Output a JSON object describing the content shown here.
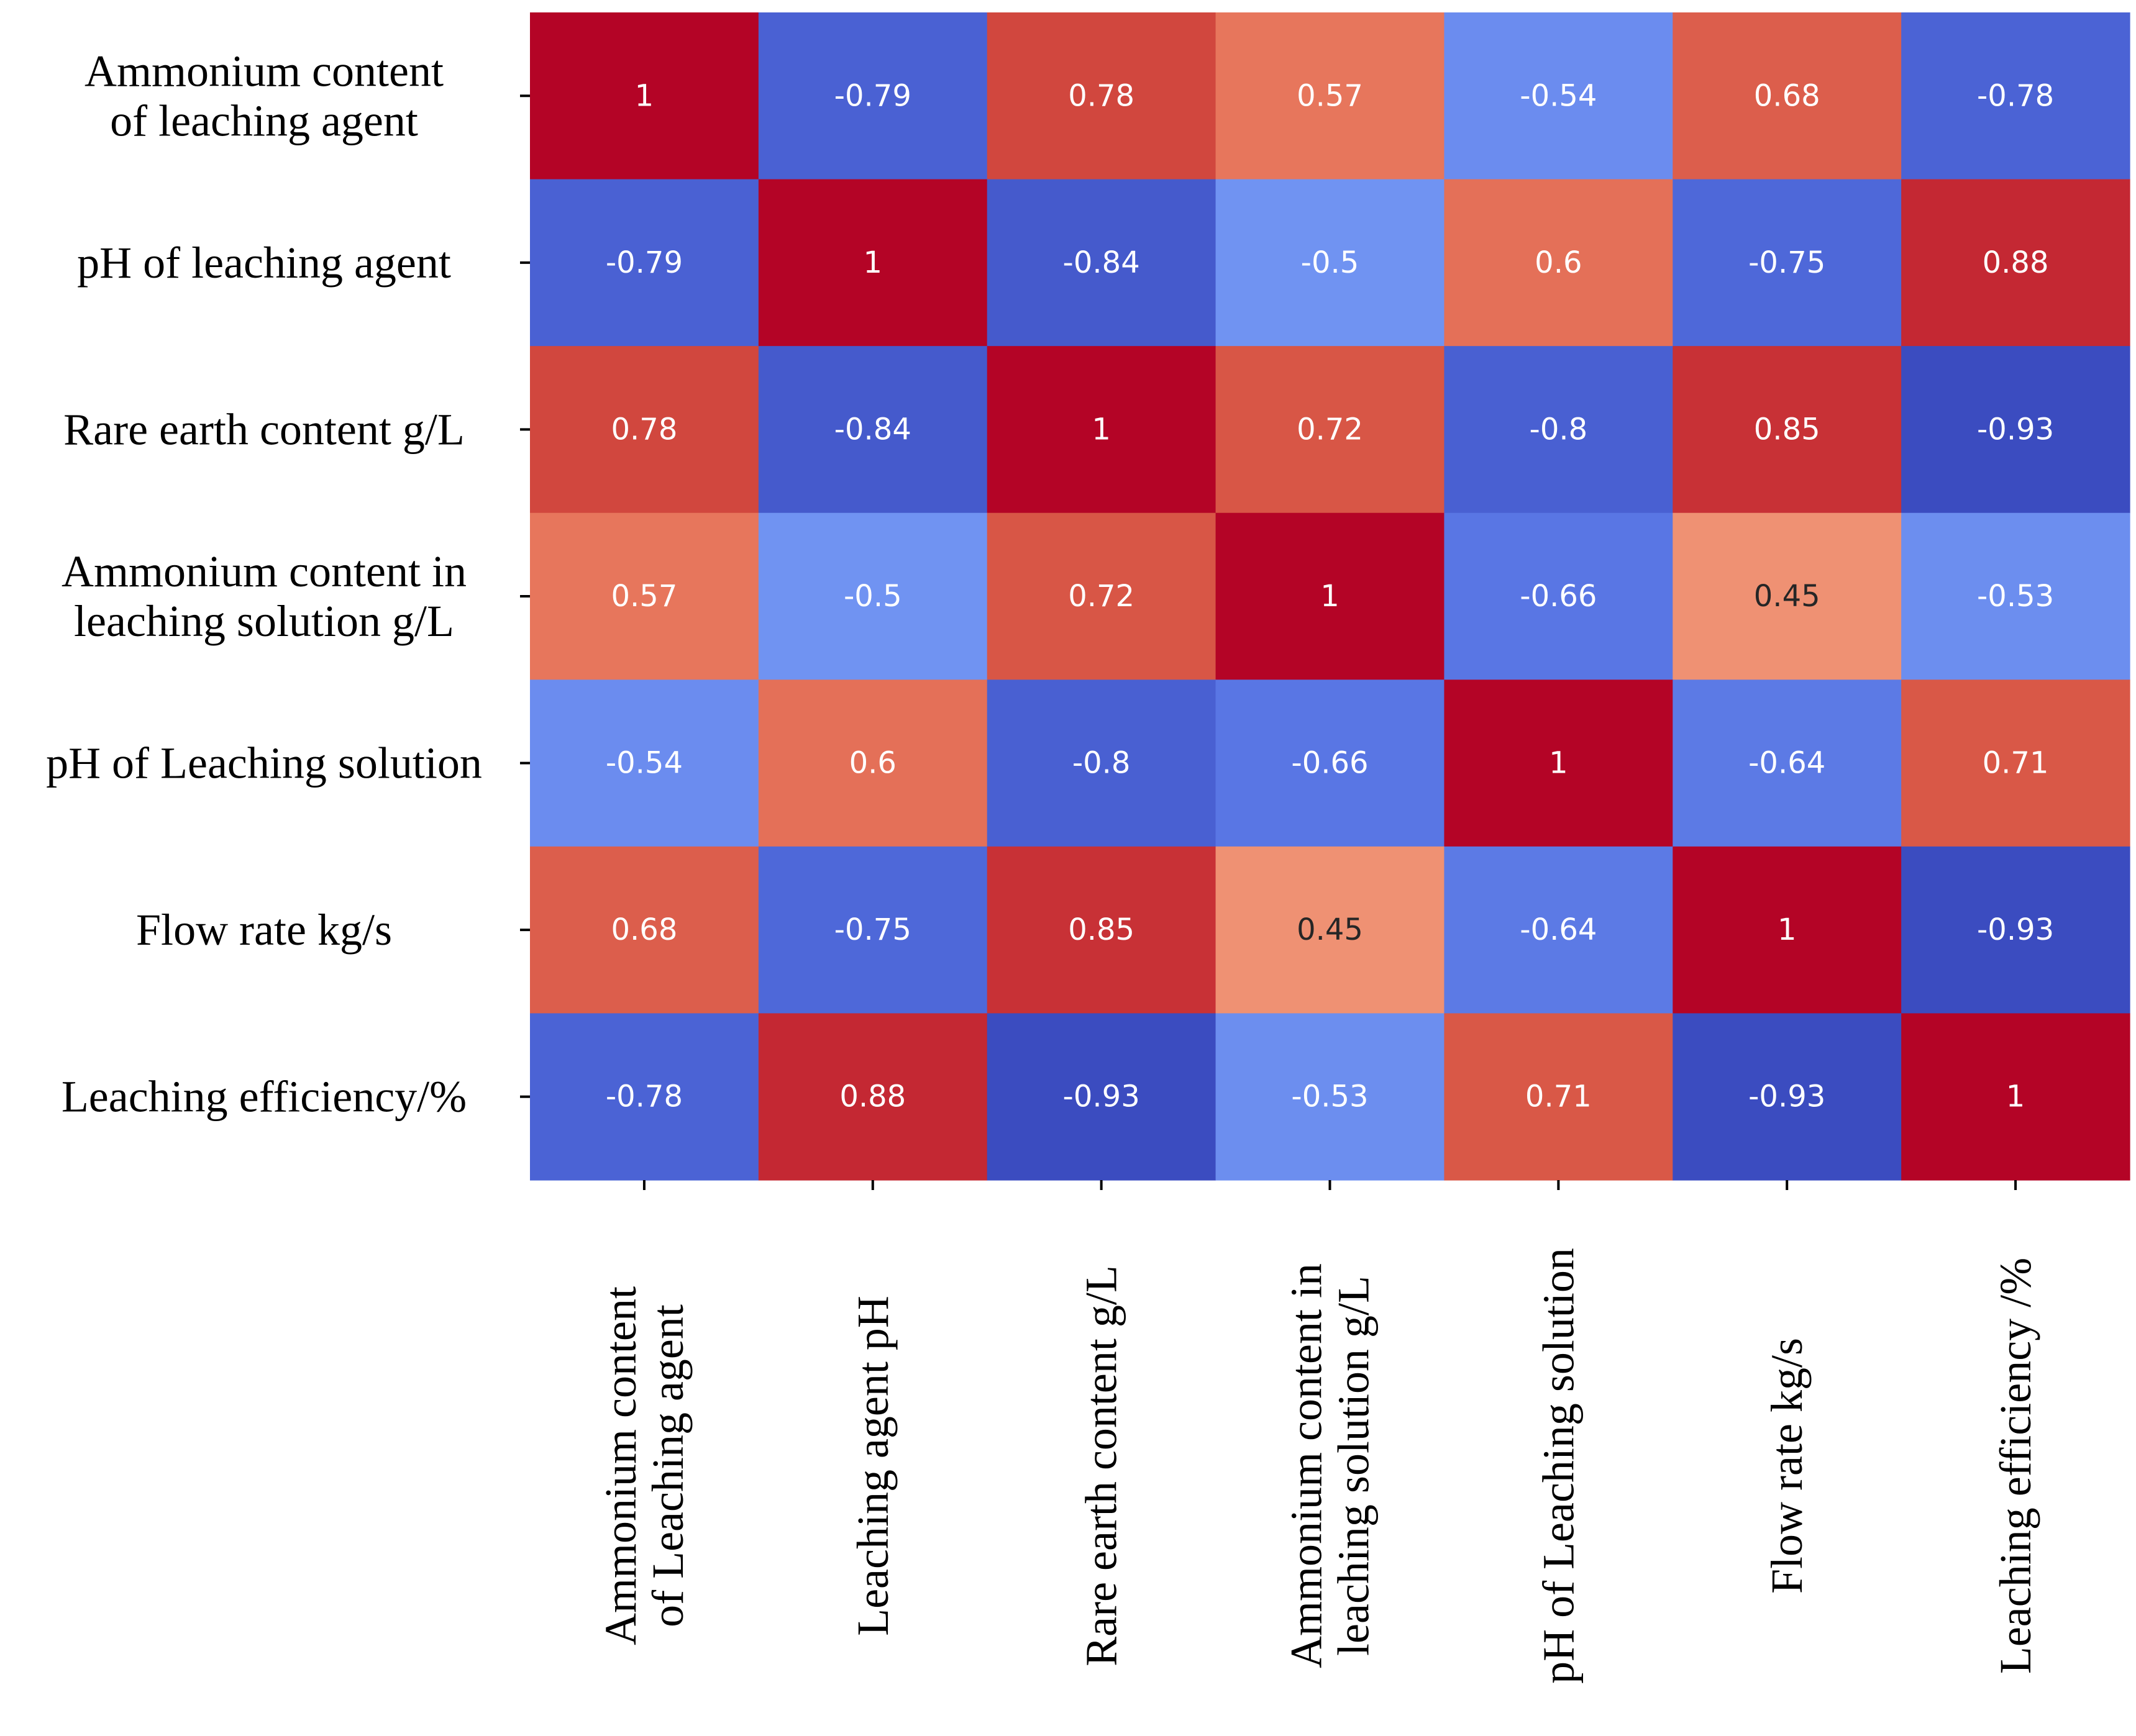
{
  "chart_data": {
    "type": "heatmap",
    "title": "",
    "xlabel": "",
    "ylabel": "",
    "colormap": "coolwarm",
    "value_range": [
      -0.93,
      1
    ],
    "row_labels": [
      [
        "Ammonium content",
        "of leaching agent"
      ],
      [
        "pH of leaching agent"
      ],
      [
        "Rare earth content g/L"
      ],
      [
        "Ammonium content in",
        "leaching solution g/L"
      ],
      [
        "pH of Leaching solution"
      ],
      [
        "Flow rate kg/s"
      ],
      [
        "Leaching efficiency/%"
      ]
    ],
    "col_labels": [
      [
        "Ammonium content",
        "of Leaching agent"
      ],
      [
        "Leaching agent pH"
      ],
      [
        "Rare earth content g/L"
      ],
      [
        "Ammonium content in",
        "leaching solution g/L"
      ],
      [
        "pH of Leaching solution"
      ],
      [
        "Flow rate kg/s"
      ],
      [
        "Leaching efficiency /%"
      ]
    ],
    "cell_text": [
      [
        "1",
        "-0.79",
        "0.78",
        "0.57",
        "-0.54",
        "0.68",
        "-0.78"
      ],
      [
        "-0.79",
        "1",
        "-0.84",
        "-0.5",
        "0.6",
        "-0.75",
        "0.88"
      ],
      [
        "0.78",
        "-0.84",
        "1",
        "0.72",
        "-0.8",
        "0.85",
        "-0.93"
      ],
      [
        "0.57",
        "-0.5",
        "0.72",
        "1",
        "-0.66",
        "0.45",
        "-0.53"
      ],
      [
        "-0.54",
        "0.6",
        "-0.8",
        "-0.66",
        "1",
        "-0.64",
        "0.71"
      ],
      [
        "0.68",
        "-0.75",
        "0.85",
        "0.45",
        "-0.64",
        "1",
        "-0.93"
      ],
      [
        "-0.78",
        "0.88",
        "-0.93",
        "-0.53",
        "0.71",
        "-0.93",
        "1"
      ]
    ]
  }
}
